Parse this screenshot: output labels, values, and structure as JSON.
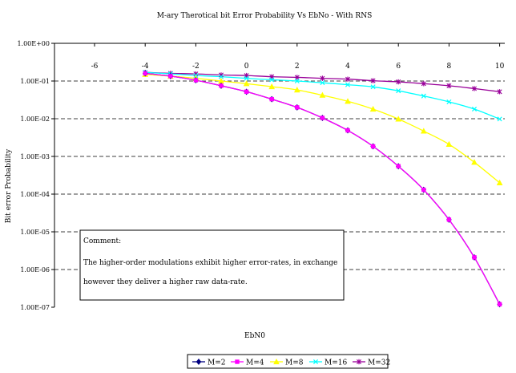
{
  "chart_data": {
    "type": "line",
    "title": "M-ary Therotical bit Error Probability Vs EbNo - With RNS",
    "xlabel": "EbN0",
    "ylabel": "Bit error Probability",
    "y_scale": "log",
    "ylim": [
      1e-07,
      1
    ],
    "xlim": [
      -6,
      10
    ],
    "x_ticks": [
      -6,
      -4,
      -2,
      0,
      2,
      4,
      6,
      8,
      10
    ],
    "x_tick_labels": [
      "-6",
      "-4",
      "-2",
      "0",
      "2",
      "4",
      "6",
      "8",
      "10"
    ],
    "y_ticks": [
      1,
      0.1,
      0.01,
      0.001,
      0.0001,
      1e-05,
      1e-06,
      1e-07
    ],
    "y_tick_labels": [
      "1.00E+00",
      "1.00E-01",
      "1.00E-02",
      "1.00E-03",
      "1.00E-04",
      "1.00E-05",
      "1.00E-06",
      "1.00E-07"
    ],
    "grid": "horizontal dashed",
    "legend_position": "bottom",
    "x": [
      -4,
      -3,
      -2,
      -1,
      0,
      1,
      2,
      3,
      4,
      5,
      6,
      7,
      8,
      9,
      10
    ],
    "series": [
      {
        "name": "M=2",
        "color": "#000080",
        "marker": "diamond",
        "values": [
          0.16,
          0.135,
          0.105,
          0.075,
          0.052,
          0.033,
          0.02,
          0.0105,
          0.0049,
          0.00185,
          0.00055,
          0.00013,
          2.1e-05,
          2.1e-06,
          1.2e-07
        ]
      },
      {
        "name": "M=4",
        "color": "#ff00ff",
        "marker": "square",
        "values": [
          0.16,
          0.135,
          0.105,
          0.075,
          0.052,
          0.033,
          0.02,
          0.0105,
          0.0049,
          0.00185,
          0.00055,
          0.00013,
          2.1e-05,
          2.1e-06,
          1.2e-07
        ]
      },
      {
        "name": "M=8",
        "color": "#ffff00",
        "marker": "triangle",
        "values": [
          0.15,
          0.135,
          0.118,
          0.1,
          0.085,
          0.071,
          0.058,
          0.042,
          0.029,
          0.018,
          0.0098,
          0.0047,
          0.0021,
          0.0007,
          0.0002
        ]
      },
      {
        "name": "M=16",
        "color": "#00ffff",
        "marker": "x",
        "values": [
          0.17,
          0.155,
          0.14,
          0.13,
          0.118,
          0.108,
          0.1,
          0.09,
          0.08,
          0.07,
          0.055,
          0.04,
          0.028,
          0.018,
          0.0098
        ]
      },
      {
        "name": "M=32",
        "color": "#990099",
        "marker": "star",
        "values": [
          0.17,
          0.16,
          0.155,
          0.145,
          0.14,
          0.13,
          0.125,
          0.118,
          0.112,
          0.102,
          0.095,
          0.085,
          0.075,
          0.063,
          0.052
        ]
      }
    ],
    "annotation": {
      "line1": "Comment:",
      "line2": "The higher-order modulations exhibit higher error-rates,  in exchange",
      "line3": "however they deliver a higher raw data-rate."
    }
  }
}
